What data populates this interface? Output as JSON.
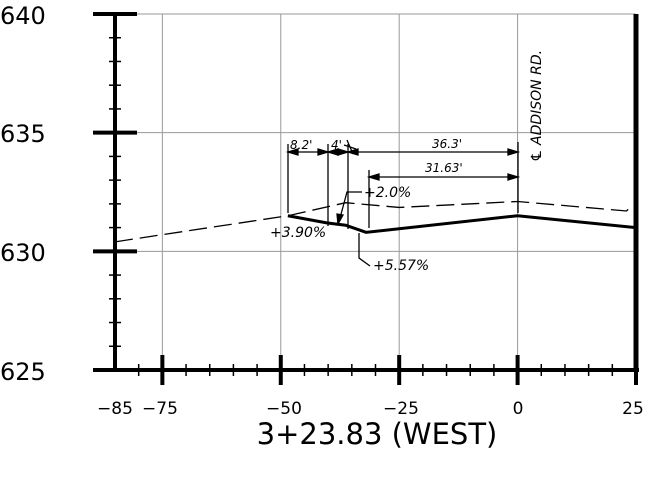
{
  "title": "3+23.83 (WEST)",
  "centerline_label": "℄ ADDISON RD.",
  "axes": {
    "x_ticks": [
      "−85",
      "−75",
      "−50",
      "−25",
      "0",
      "25"
    ],
    "y_ticks": [
      "640",
      "635",
      "630",
      "625"
    ]
  },
  "dimensions": {
    "d1": "8.2'",
    "d2": "4'",
    "d3": "36.3'",
    "d4": "31.63'"
  },
  "slopes": {
    "s1": "+2.0%",
    "s2": "+3.90%",
    "s3": "+5.57%"
  },
  "chart_data": {
    "type": "line",
    "xlim": [
      -85,
      25
    ],
    "ylim": [
      625,
      640
    ],
    "grid": true,
    "series": [
      {
        "x": [
          -48.5,
          -40.3,
          -36.3,
          -32.0,
          0,
          25
        ],
        "y": [
          631.5,
          631.2,
          631.1,
          630.8,
          631.5,
          631.0
        ]
      },
      {
        "x": [
          -85,
          -48.5,
          -36.3,
          -25.0,
          0,
          23.0,
          24.0
        ],
        "y": [
          630.4,
          631.5,
          632.05,
          631.85,
          632.1,
          631.7,
          631.9
        ]
      }
    ]
  }
}
